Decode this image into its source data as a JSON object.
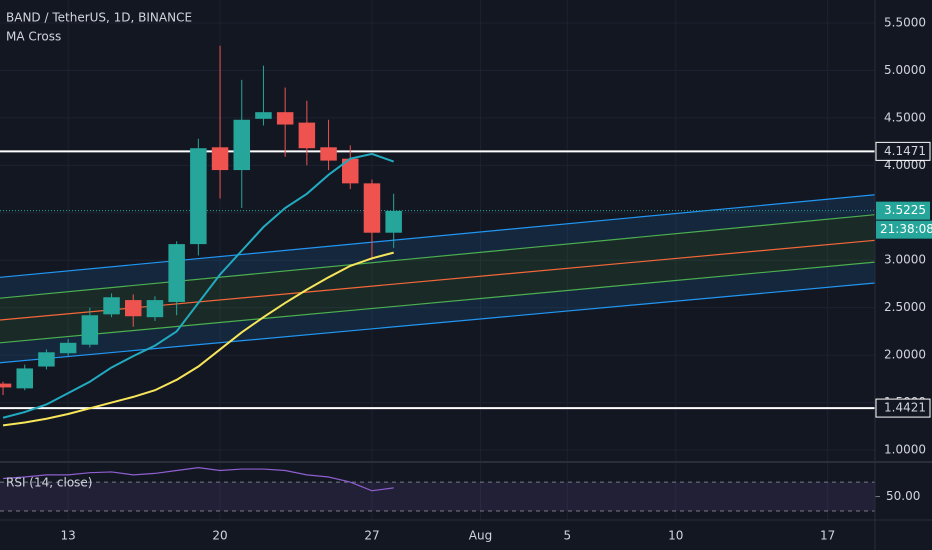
{
  "chart_data": [
    {
      "type": "candlestick",
      "title": "BAND / TetherUS, 1D, BINANCE",
      "subtitle": "MA Cross",
      "x": [
        10,
        11,
        12,
        13,
        14,
        15,
        16,
        17,
        18,
        19,
        20,
        21,
        22,
        23,
        24,
        25,
        26,
        27,
        28
      ],
      "open": [
        1.7,
        1.65,
        1.88,
        2.02,
        2.11,
        2.43,
        2.58,
        2.4,
        2.56,
        3.17,
        4.19,
        3.95,
        4.49,
        4.56,
        4.45,
        4.19,
        4.07,
        3.81,
        3.29
      ],
      "high": [
        1.72,
        1.9,
        2.06,
        2.17,
        2.5,
        2.65,
        2.64,
        2.62,
        3.2,
        4.28,
        5.26,
        4.9,
        5.05,
        4.82,
        4.68,
        4.48,
        4.21,
        3.85,
        3.7
      ],
      "low": [
        1.58,
        1.63,
        1.85,
        1.99,
        2.08,
        2.4,
        2.3,
        2.36,
        2.42,
        3.05,
        3.65,
        3.55,
        4.42,
        4.09,
        4.0,
        3.95,
        3.75,
        3.0,
        3.13
      ],
      "close": [
        1.66,
        1.86,
        2.03,
        2.13,
        2.42,
        2.61,
        2.41,
        2.58,
        3.17,
        4.18,
        3.95,
        4.48,
        4.56,
        4.43,
        4.18,
        4.05,
        3.81,
        3.29,
        3.52
      ],
      "up_color": "#26a69a",
      "down_color": "#ef5350",
      "overlays": [
        {
          "color": "#22abc0",
          "values": [
            1.34,
            1.4,
            1.48,
            1.6,
            1.72,
            1.87,
            1.99,
            2.1,
            2.25,
            2.55,
            2.85,
            3.1,
            3.35,
            3.55,
            3.7,
            3.9,
            4.07,
            4.12,
            4.04
          ]
        },
        {
          "color": "#f7e65a",
          "values": [
            1.26,
            1.29,
            1.33,
            1.38,
            1.44,
            1.5,
            1.56,
            1.63,
            1.74,
            1.88,
            2.06,
            2.24,
            2.4,
            2.55,
            2.69,
            2.82,
            2.94,
            3.02,
            3.08
          ]
        }
      ],
      "channel": [
        {
          "color": "#2196f3",
          "values": [
            2.82,
            3.69
          ]
        },
        {
          "color": "#4caf50",
          "values": [
            2.6,
            3.48
          ]
        },
        {
          "color": "#f4673a",
          "values": [
            2.37,
            3.21
          ]
        },
        {
          "color": "#4caf50",
          "values": [
            2.13,
            2.98
          ]
        },
        {
          "color": "#2196f3",
          "values": [
            1.92,
            2.76
          ]
        }
      ],
      "hlines": [
        4.1471,
        1.4421
      ],
      "last_price": 3.5225,
      "countdown": "21:38:08",
      "xlim": [
        9.86,
        50.18
      ],
      "xticks": [
        13,
        20,
        27,
        {
          "value": 32,
          "label": "Aug"
        },
        {
          "value": 36,
          "label": "5"
        },
        {
          "value": 41,
          "label": "10"
        },
        {
          "value": 48,
          "label": "17"
        }
      ],
      "ylim": [
        0.874,
        5.742
      ],
      "yticks": [
        {
          "value": 1,
          "label": "1.0000"
        },
        {
          "value": 1.5,
          "label": "1.5000"
        },
        {
          "value": 2,
          "label": "2.0000"
        },
        {
          "value": 2.5,
          "label": "2.5000"
        },
        {
          "value": 3,
          "label": "3.0000"
        },
        {
          "value": 3.5,
          "label": "3.5000"
        },
        {
          "value": 4,
          "label": "4.0000"
        },
        {
          "value": 4.5,
          "label": "4.5000"
        },
        {
          "value": 5,
          "label": "5.0000"
        },
        {
          "value": 5.5,
          "label": "5.5000"
        }
      ],
      "grid": true
    },
    {
      "type": "line",
      "title": "RSI (14, close)",
      "x": [
        10,
        11,
        12,
        13,
        14,
        15,
        16,
        17,
        18,
        19,
        20,
        21,
        22,
        23,
        24,
        25,
        26,
        27,
        28
      ],
      "values": [
        75,
        77,
        80,
        80,
        83,
        84,
        80,
        82,
        86,
        90,
        86,
        88,
        88,
        86,
        80,
        77,
        70,
        58,
        62
      ],
      "color": "#8e5fd0",
      "bands": [
        30,
        70
      ],
      "xlim": [
        9.86,
        50.18
      ],
      "ylim": [
        19,
        95
      ],
      "yticks": [
        {
          "value": 50,
          "label": "50.00"
        }
      ]
    }
  ]
}
